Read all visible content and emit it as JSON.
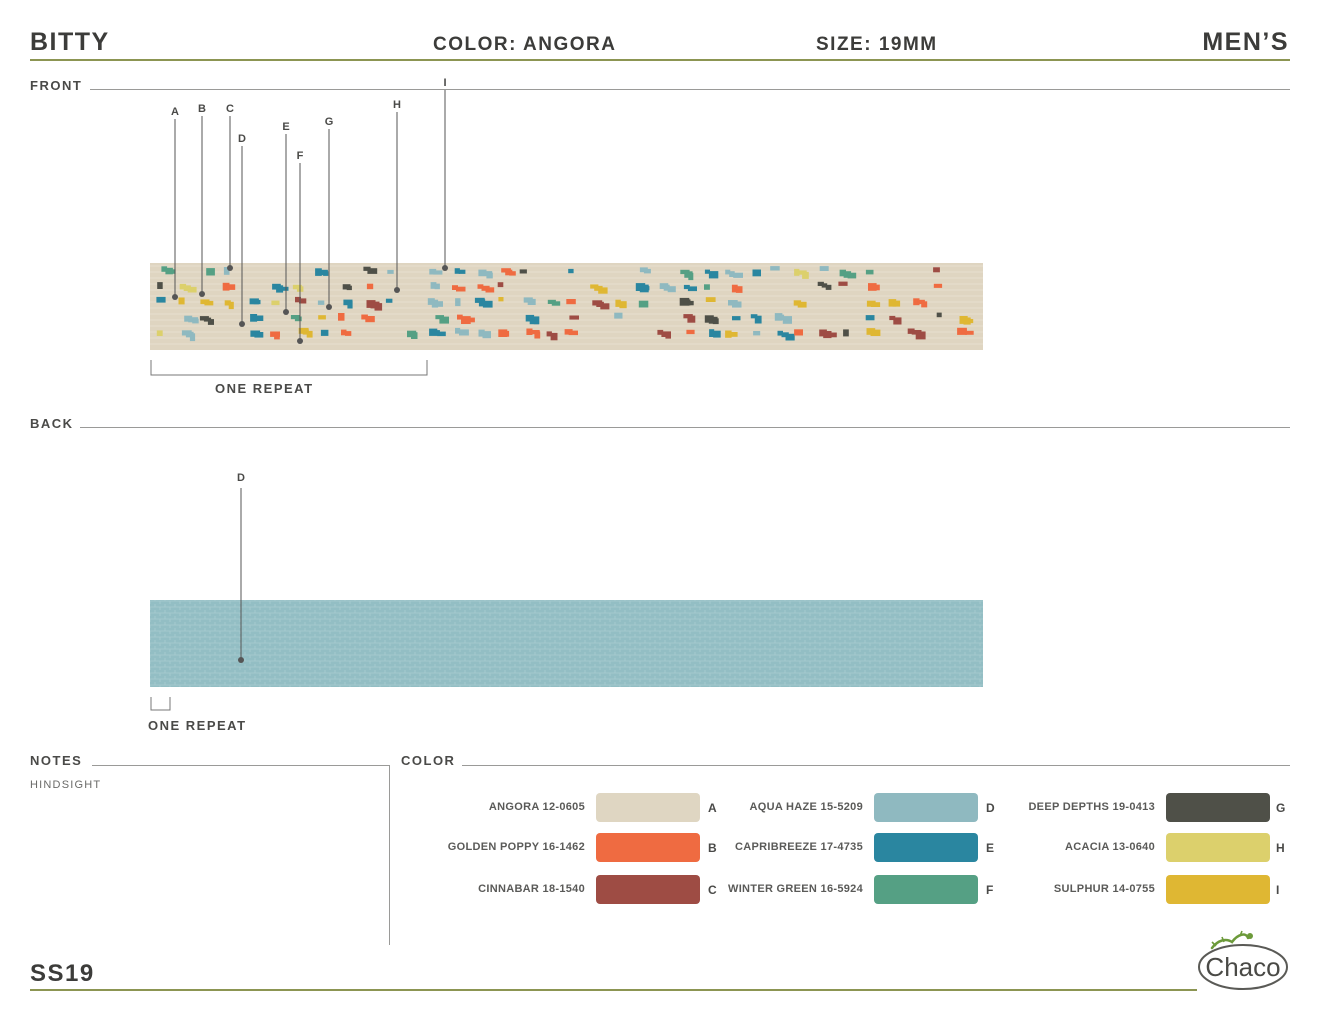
{
  "header": {
    "style_name": "BITTY",
    "color": "COLOR: ANGORA",
    "size": "SIZE: 19MM",
    "gender": "MEN’S"
  },
  "sections": {
    "front": "FRONT",
    "back": "BACK",
    "notes": "NOTES",
    "color": "COLOR"
  },
  "front_strap": {
    "repeat_label": "ONE REPEAT",
    "base_color": "#dfd5c1",
    "callouts": [
      "A",
      "B",
      "C",
      "D",
      "E",
      "F",
      "G",
      "H",
      "I"
    ]
  },
  "back_strap": {
    "repeat_label": "ONE REPEAT",
    "base_color": "#93bec4",
    "callouts": [
      "D"
    ]
  },
  "notes": {
    "text": "HINDSIGHT"
  },
  "palette": [
    {
      "name": "ANGORA 12-0605",
      "color": "#dfd6c2",
      "letter": "A"
    },
    {
      "name": "GOLDEN POPPY 16-1462",
      "color": "#ef6b41",
      "letter": "B"
    },
    {
      "name": "CINNABAR 18-1540",
      "color": "#9e4c44",
      "letter": "C"
    },
    {
      "name": "AQUA HAZE 15-5209",
      "color": "#8fb9c0",
      "letter": "D"
    },
    {
      "name": "CAPRIBREEZE 17-4735",
      "color": "#2a86a0",
      "letter": "E"
    },
    {
      "name": "WINTER GREEN 16-5924",
      "color": "#55a084",
      "letter": "F"
    },
    {
      "name": "DEEP DEPTHS 19-0413",
      "color": "#4f5048",
      "letter": "G"
    },
    {
      "name": "ACACIA 13-0640",
      "color": "#dcd06c",
      "letter": "H"
    },
    {
      "name": "SULPHUR 14-0755",
      "color": "#dfb733",
      "letter": "I"
    }
  ],
  "footer": {
    "season": "SS19",
    "brand": "Chaco"
  },
  "colors": {
    "olive_rule": "#8c9552",
    "text": "#3c3c3a"
  }
}
